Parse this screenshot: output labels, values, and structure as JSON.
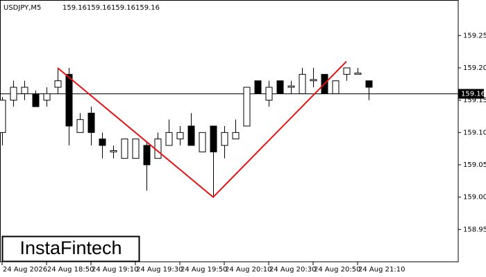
{
  "chart_data": {
    "type": "candlestick",
    "title": "USDJPY,M5",
    "header_values": [
      159.16,
      159.16,
      159.16,
      159.16
    ],
    "logo": "InstaFintech",
    "categories": [
      "24 Aug 2026",
      null,
      null,
      null,
      "24 Aug 18:50",
      null,
      null,
      null,
      "24 Aug 19:10",
      null,
      null,
      null,
      "24 Aug 19:30",
      null,
      null,
      null,
      "24 Aug 19:50",
      null,
      null,
      null,
      "24 Aug 20:10",
      null,
      null,
      null,
      "24 Aug 20:30",
      null,
      null,
      null,
      "24 Aug 20:50",
      null,
      null,
      null,
      "24 Aug 21:10",
      null
    ],
    "open": [
      159.1,
      159.15,
      159.16,
      159.16,
      159.15,
      159.17,
      159.19,
      159.1,
      159.13,
      159.09,
      159.07,
      159.06,
      159.06,
      159.08,
      159.06,
      159.08,
      159.09,
      159.11,
      159.07,
      159.11,
      159.08,
      159.09,
      159.11,
      159.18,
      159.15,
      159.18,
      159.17,
      159.16,
      159.18,
      159.19,
      159.16,
      159.19,
      159.19,
      159.18
    ],
    "high": [
      159.155,
      159.18,
      159.18,
      159.165,
      159.17,
      159.2,
      159.2,
      159.13,
      159.14,
      159.1,
      159.08,
      159.09,
      159.09,
      159.085,
      159.1,
      159.12,
      159.11,
      159.13,
      159.1,
      159.11,
      159.11,
      159.12,
      159.17,
      159.18,
      159.18,
      159.18,
      159.18,
      159.2,
      159.2,
      159.19,
      159.18,
      159.2,
      159.2,
      159.18
    ],
    "low": [
      159.08,
      159.14,
      159.15,
      159.14,
      159.14,
      159.16,
      159.08,
      159.1,
      159.08,
      159.06,
      159.06,
      159.06,
      159.06,
      159.01,
      159.06,
      159.08,
      159.08,
      159.08,
      159.07,
      159.0,
      159.06,
      159.09,
      159.11,
      159.16,
      159.14,
      159.16,
      159.16,
      159.16,
      159.17,
      159.16,
      159.16,
      159.18,
      159.19,
      159.15
    ],
    "close": [
      159.15,
      159.17,
      159.17,
      159.14,
      159.16,
      159.18,
      159.11,
      159.12,
      159.1,
      159.08,
      159.072,
      159.09,
      159.09,
      159.05,
      159.09,
      159.1,
      159.1,
      159.08,
      159.1,
      159.07,
      159.1,
      159.1,
      159.17,
      159.16,
      159.17,
      159.16,
      159.172,
      159.19,
      159.182,
      159.16,
      159.18,
      159.2,
      159.192,
      159.17
    ],
    "up_color": "#ffffff",
    "down_color": "#000000",
    "current_price": 159.16,
    "pattern_line": {
      "color": "#e81010",
      "points": [
        {
          "index": 5,
          "value": 159.2
        },
        {
          "index": 19,
          "value": 159.0
        },
        {
          "index": 31,
          "value": 159.21
        }
      ]
    },
    "ylim": [
      158.9,
      159.305
    ],
    "yticks": [
      {
        "value": 158.95,
        "label": "158.95"
      },
      {
        "value": 159.0,
        "label": "159.00"
      },
      {
        "value": 159.05,
        "label": "159.05"
      },
      {
        "value": 159.1,
        "label": "159.10"
      },
      {
        "value": 159.15,
        "label": "159.15"
      },
      {
        "value": 159.2,
        "label": "159.20"
      },
      {
        "value": 159.25,
        "label": "159.25"
      }
    ]
  }
}
